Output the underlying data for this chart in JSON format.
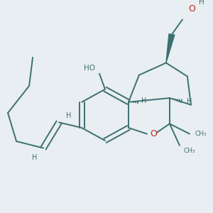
{
  "bg_color": "#e8eef2",
  "bond_color": "#3d7070",
  "oxygen_color": "#cc2020",
  "lw": 1.4,
  "figsize": [
    3.0,
    3.0
  ],
  "dpi": 100,
  "xlim": [
    0,
    300
  ],
  "ylim": [
    0,
    300
  ]
}
